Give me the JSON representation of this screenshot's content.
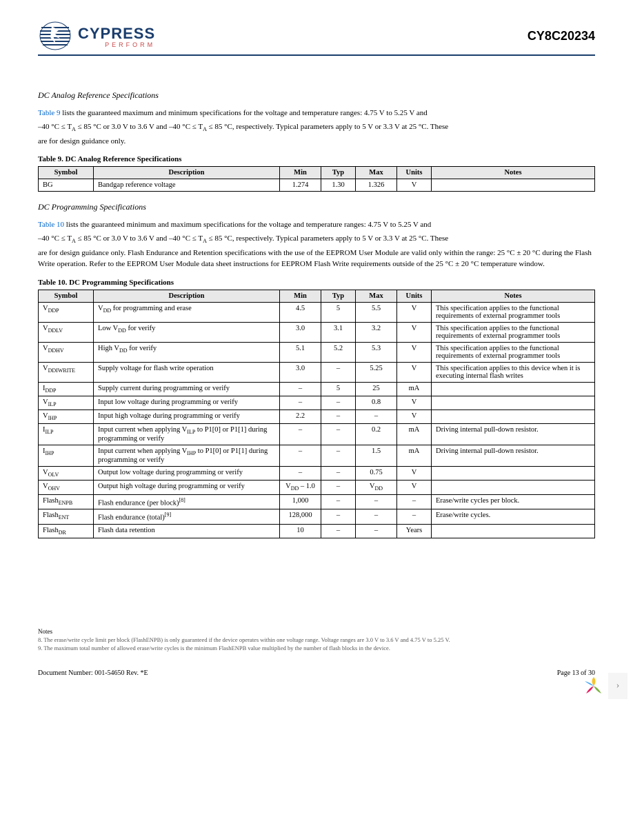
{
  "header": {
    "logo_name": "CYPRESS",
    "logo_tagline": "PERFORM",
    "part_number": "CY8C20234"
  },
  "section1": {
    "title": "DC Analog Reference Specifications",
    "intro_prefix": "Table 9",
    "intro_text_1": " lists the guaranteed maximum and minimum specifications for the voltage and temperature ranges: 4.75 V to 5.25 V and",
    "intro_text_2": "–40 °C ≤ T",
    "intro_text_2_sub": "A",
    "intro_text_2_cont": " ≤ 85 °C or 3.0 V to 3.6 V and –40 °C ≤ T",
    "intro_text_3_sub": "A",
    "intro_text_3": " ≤ 85 °C, respectively. Typical parameters apply to 5 V or 3.3 V at 25 °C. These",
    "intro_text_4": "are for design guidance only.",
    "table_caption": "Table 9.  DC Analog Reference Specifications",
    "table": {
      "headers": [
        "Symbol",
        "Description",
        "Min",
        "Typ",
        "Max",
        "Units",
        "Notes"
      ],
      "rows": [
        {
          "symbol": "BG",
          "desc": "Bandgap reference voltage",
          "min": "1.274",
          "typ": "1.30",
          "max": "1.326",
          "units": "V",
          "notes": ""
        }
      ]
    }
  },
  "section2": {
    "title": "DC Programming Specifications",
    "intro_prefix": "Table 10",
    "intro_text_1": " lists the guaranteed minimum and maximum specifications for the voltage and temperature ranges: 4.75 V to 5.25 V and",
    "intro_text_2": "–40 °C ≤ T",
    "intro_text_2_sub": "A",
    "intro_text_2_cont": " ≤ 85 °C or 3.0 V to 3.6 V and –40 °C ≤ T",
    "intro_text_3_sub": "A",
    "intro_text_3": " ≤ 85 °C, respectively. Typical parameters apply to 5 V or 3.3 V at 25 °C. These",
    "intro_text_4": "are for design guidance only. Flash Endurance and Retention specifications with the use of the EEPROM User Module are valid only within the range: 25 °C ± 20 °C during the Flash Write operation. Refer to the EEPROM User Module data sheet instructions for EEPROM Flash Write requirements outside of the 25 °C ± 20 °C temperature window.",
    "table_caption": "Table 10.  DC Programming Specifications",
    "table": {
      "headers": [
        "Symbol",
        "Description",
        "Min",
        "Typ",
        "Max",
        "Units",
        "Notes"
      ],
      "rows": [
        {
          "symbol_pre": "V",
          "symbol_sub": "DDP",
          "desc_pre": "V",
          "desc_sub": "DD",
          "desc_post": " for programming and erase",
          "min": "4.5",
          "typ": "5",
          "max": "5.5",
          "units": "V",
          "notes": "This specification applies to the functional requirements of external programmer tools"
        },
        {
          "symbol_pre": "V",
          "symbol_sub": "DDLV",
          "desc_pre": "Low V",
          "desc_sub": "DD",
          "desc_post": " for verify",
          "min": "3.0",
          "typ": "3.1",
          "max": "3.2",
          "units": "V",
          "notes": "This specification applies to the functional requirements of external programmer tools"
        },
        {
          "symbol_pre": "V",
          "symbol_sub": "DDHV",
          "desc_pre": "High V",
          "desc_sub": "DD",
          "desc_post": " for verify",
          "min": "5.1",
          "typ": "5.2",
          "max": "5.3",
          "units": "V",
          "notes": "This specification applies to the functional requirements of external programmer tools"
        },
        {
          "symbol_pre": "V",
          "symbol_sub": "DDIWRITE",
          "desc": "Supply voltage for flash write operation",
          "min": "3.0",
          "typ": "–",
          "max": "5.25",
          "units": "V",
          "notes": "This specification applies to this device when it is executing internal flash writes"
        },
        {
          "symbol_pre": "I",
          "symbol_sub": "DDP",
          "desc": "Supply current during programming or verify",
          "min": "–",
          "typ": "5",
          "max": "25",
          "units": "mA",
          "notes": ""
        },
        {
          "symbol_pre": "V",
          "symbol_sub": "ILP",
          "desc": "Input low voltage during programming or verify",
          "min": "–",
          "typ": "–",
          "max": "0.8",
          "units": "V",
          "notes": ""
        },
        {
          "symbol_pre": "V",
          "symbol_sub": "IHP",
          "desc": "Input high voltage during programming or verify",
          "min": "2.2",
          "typ": "–",
          "max": "–",
          "units": "V",
          "notes": ""
        },
        {
          "symbol_pre": "I",
          "symbol_sub": "ILP",
          "desc_pre": "Input current when applying V",
          "desc_sub": "ILP",
          "desc_post": " to P1[0] or P1[1] during programming or verify",
          "min": "–",
          "typ": "–",
          "max": "0.2",
          "units": "mA",
          "notes": "Driving internal pull-down resistor."
        },
        {
          "symbol_pre": "I",
          "symbol_sub": "IHP",
          "desc_pre": "Input current when applying V",
          "desc_sub": "IHP",
          "desc_post": " to P1[0] or P1[1] during programming or verify",
          "min": "–",
          "typ": "–",
          "max": "1.5",
          "units": "mA",
          "notes": "Driving internal pull-down resistor."
        },
        {
          "symbol_pre": "V",
          "symbol_sub": "OLV",
          "desc": "Output low voltage during programming or verify",
          "min": "–",
          "typ": "–",
          "max": "0.75",
          "units": "V",
          "notes": ""
        },
        {
          "symbol_pre": "V",
          "symbol_sub": "OHV",
          "desc": "Output high voltage during programming or verify",
          "min_pre": "V",
          "min_sub": "DD",
          "min_post": " – 1.0",
          "typ": "–",
          "max_pre": "V",
          "max_sub": "DD",
          "units": "V",
          "notes": ""
        },
        {
          "symbol_pre": "Flash",
          "symbol_sub": "ENPB",
          "desc": "Flash endurance (per block)",
          "desc_sup": "[8]",
          "min": "1,000",
          "typ": "–",
          "max": "–",
          "units": "–",
          "notes": "Erase/write cycles per block."
        },
        {
          "symbol_pre": "Flash",
          "symbol_sub": "ENT",
          "desc": "Flash endurance (total)",
          "desc_sup": "[9]",
          "min": "128,000",
          "typ": "–",
          "max": "–",
          "units": "–",
          "notes": "Erase/write cycles."
        },
        {
          "symbol_pre": "Flash",
          "symbol_sub": "DR",
          "desc": "Flash data retention",
          "min": "10",
          "typ": "–",
          "max": "–",
          "units": "Years",
          "notes": ""
        }
      ]
    }
  },
  "notes": {
    "header": "Notes",
    "items": [
      "8. The erase/write cycle limit per block (FlashENPB) is only guaranteed if the device operates within one voltage range. Voltage ranges are 3.0 V to 3.6 V and 4.75 V to 5.25 V.",
      "9. The maximum total number of allowed erase/write cycles is the minimum FlashENPB value multiplied by the number of flash blocks in the device."
    ]
  },
  "footer": {
    "doc_number": "Document Number: 001-54650 Rev. *E",
    "page": "Page 13 of 30"
  }
}
